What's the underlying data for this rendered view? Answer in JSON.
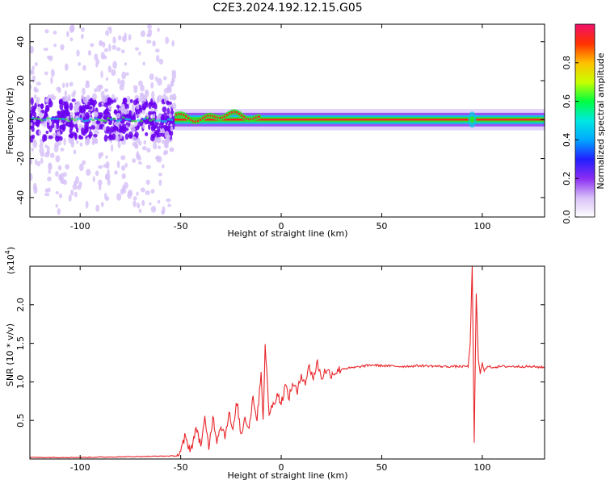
{
  "title": "C2E3.2024.192.12.15.G05",
  "colors": {
    "snr_line": "#e8262b",
    "ridge_core": "#ff2020",
    "ridge_mid": "#30e030",
    "ridge_outer": "#00d0e0",
    "scatter_dense": "#6a00f0",
    "scatter_sparse": "#d6c0f8"
  },
  "chart_data": [
    {
      "type": "heatmap",
      "xlabel": "Height of straight line (km)",
      "ylabel": "Frequency (Hz)",
      "xlim": [
        -125,
        131
      ],
      "ylim": [
        -50,
        49
      ],
      "xticks": [
        -100,
        -50,
        0,
        50,
        100
      ],
      "xtick_labels": [
        "-100",
        "-50",
        "0",
        "50",
        "100"
      ],
      "yticks": [
        -40,
        -20,
        0,
        20,
        40
      ],
      "ytick_labels": [
        "-40",
        "-20",
        "0",
        "20",
        "40"
      ],
      "description_ranges": {
        "noisy_scatter_height_km": [
          -125,
          -53
        ],
        "signal_ridge_height_km": [
          -53,
          131
        ],
        "ridge_frequency_hz": 0,
        "perturbation_height_km": 95
      },
      "colorbar": {
        "label": "Normalized spectral amplitude",
        "range": [
          0.0,
          1.0
        ],
        "ticks": [
          0.0,
          0.2,
          0.4,
          0.6,
          0.8
        ],
        "tick_labels": [
          "0.0",
          "0.2",
          "0.4",
          "0.6",
          "0.8"
        ],
        "colormap": [
          "#ffffff",
          "#d8c0f8",
          "#8a2cf2",
          "#2020ff",
          "#00a8ff",
          "#00e8e0",
          "#00ff40",
          "#c8ff00",
          "#ffc000",
          "#ff3000",
          "#f0106a"
        ]
      }
    },
    {
      "type": "line",
      "xlabel": "Height of straight line (km)",
      "ylabel": "SNR (10 * v/v)",
      "y_multiplier": "(x10",
      "y_multiplier_exp": "4",
      "y_multiplier_close": ")",
      "xlim": [
        -125,
        131
      ],
      "ylim": [
        0,
        2.5
      ],
      "xticks": [
        -100,
        -50,
        0,
        50,
        100
      ],
      "xtick_labels": [
        "-100",
        "-50",
        "0",
        "50",
        "100"
      ],
      "yticks": [
        0.5,
        1.0,
        1.5,
        2.0
      ],
      "ytick_labels": [
        "0.5",
        "1.0",
        "1.5",
        "2.0"
      ],
      "series": [
        {
          "x": [
            -125,
            -100,
            -75,
            -52,
            -50,
            -48,
            -45,
            -42,
            -40,
            -38,
            -36,
            -34,
            -32,
            -30,
            -28,
            -26,
            -24,
            -22,
            -20,
            -18,
            -16,
            -14,
            -12,
            -10,
            -9,
            -8,
            -6,
            -4,
            -2,
            0,
            2,
            4,
            6,
            8,
            10,
            12,
            14,
            16,
            18,
            20,
            22,
            25,
            30,
            35,
            40,
            45,
            50,
            60,
            70,
            80,
            90,
            93,
            94,
            95,
            96,
            97,
            98,
            99,
            100,
            101,
            103,
            105,
            110,
            120,
            131
          ],
          "y": [
            0.02,
            0.02,
            0.03,
            0.04,
            0.08,
            0.28,
            0.12,
            0.4,
            0.18,
            0.5,
            0.15,
            0.55,
            0.25,
            0.45,
            0.3,
            0.6,
            0.35,
            0.75,
            0.3,
            0.55,
            0.4,
            0.82,
            0.5,
            1.15,
            0.5,
            1.45,
            0.6,
            0.7,
            0.85,
            0.72,
            0.95,
            0.8,
            1.0,
            0.85,
            1.1,
            1.0,
            1.2,
            1.05,
            1.25,
            1.05,
            1.15,
            1.1,
            1.17,
            1.18,
            1.2,
            1.22,
            1.21,
            1.2,
            1.21,
            1.2,
            1.2,
            1.2,
            1.5,
            2.5,
            0.2,
            2.15,
            1.3,
            1.1,
            1.25,
            1.15,
            1.2,
            1.19,
            1.2,
            1.2,
            1.19
          ]
        }
      ]
    }
  ]
}
